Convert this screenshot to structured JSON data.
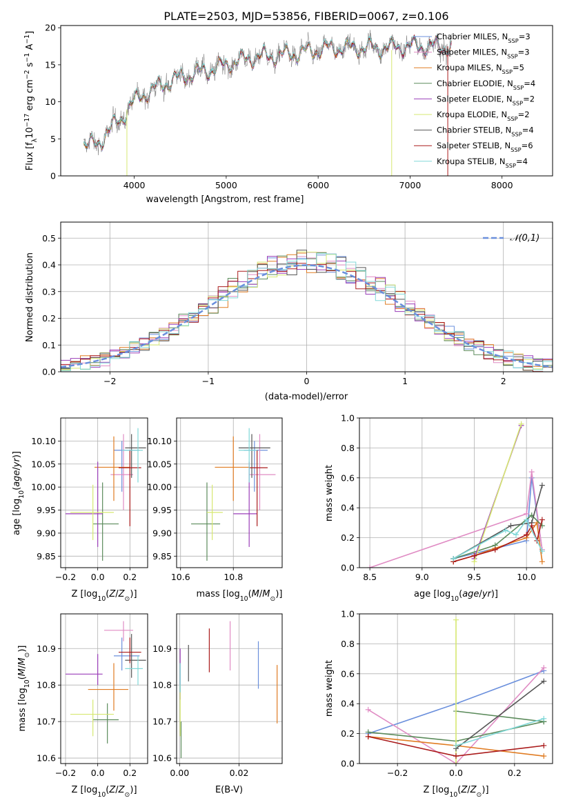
{
  "title": "PLATE=2503, MJD=53856, FIBERID=0067, z=0.106",
  "colors": {
    "chabrier_miles": "#6a8fdc",
    "salpeter_miles": "#e08cc4",
    "kroupa_miles": "#e07b21",
    "chabrier_elodie": "#5a8a5a",
    "salpeter_elodie": "#9a3db8",
    "kroupa_elodie": "#d6e870",
    "chabrier_stelib": "#555555",
    "salpeter_stelib": "#aa1a1a",
    "kroupa_stelib": "#80d8d8",
    "normal_curve": "#6a8fdc"
  },
  "chart_data": [
    {
      "id": "spectrum",
      "type": "line",
      "xlabel": "wavelength [Angstrom, rest frame]",
      "ylabel": "Flux [f_λ 10^-17 erg cm^-2 s^-1 A^-1]",
      "xlim": [
        3200,
        8550
      ],
      "ylim": [
        0,
        20.3
      ],
      "xticks": [
        4000,
        5000,
        6000,
        7000,
        8000
      ],
      "yticks": [
        0,
        5,
        10,
        15,
        20
      ],
      "legend_position": "top-right",
      "legend": [
        {
          "name": "Chabrier MILES",
          "nssp": "3",
          "color": "#6a8fdc"
        },
        {
          "name": "Salpeter MILES",
          "nssp": "3",
          "color": "#e08cc4"
        },
        {
          "name": "Kroupa MILES",
          "nssp": "5",
          "color": "#e07b21"
        },
        {
          "name": "Chabrier ELODIE",
          "nssp": "4",
          "color": "#5a8a5a"
        },
        {
          "name": "Salpeter ELODIE",
          "nssp": "2",
          "color": "#9a3db8"
        },
        {
          "name": "Kroupa ELODIE",
          "nssp": "2",
          "color": "#d6e870"
        },
        {
          "name": "Chabrier STELIB",
          "nssp": "4",
          "color": "#555555"
        },
        {
          "name": "Salpeter STELIB",
          "nssp": "6",
          "color": "#aa1a1a"
        },
        {
          "name": "Kroupa STELIB",
          "nssp": "4",
          "color": "#80d8d8"
        }
      ],
      "continuum": {
        "x": [
          3450,
          3600,
          3700,
          3850,
          3950,
          4100,
          4300,
          4500,
          4700,
          4900,
          5100,
          5300,
          5600,
          5900,
          6100,
          6400,
          6700,
          7000,
          7300,
          7450
        ],
        "y": [
          4.5,
          4.0,
          6.0,
          7.5,
          9.5,
          11.0,
          12.3,
          13.3,
          14.0,
          14.6,
          15.4,
          16.0,
          16.3,
          16.8,
          17.2,
          17.3,
          17.3,
          17.5,
          17.5,
          17.4
        ]
      },
      "model_end": {
        "Kroupa ELODIE": 6800,
        "Salpeter STELIB": 7400
      }
    },
    {
      "id": "residuals",
      "type": "line",
      "xlabel": "(data-model)/error",
      "ylabel": "Normed distribution",
      "xlim": [
        -2.5,
        2.5
      ],
      "ylim": [
        0,
        0.56
      ],
      "xticks": [
        -2,
        -1,
        0,
        1,
        2
      ],
      "yticks": [
        0,
        0.1,
        0.2,
        0.3,
        0.4,
        0.5
      ],
      "legend": "𝒩(0,1)",
      "legend_position": "top-right",
      "bin_width": 0.1
    },
    {
      "id": "age_vs_Z",
      "type": "scatter",
      "xlabel": "Z [log10(Z/Z☉)]",
      "ylabel": "age  [log10(age/yr)]",
      "xlim": [
        -0.23,
        0.31
      ],
      "ylim": [
        9.825,
        10.15
      ],
      "xticks": [
        -0.2,
        0,
        0.2
      ],
      "yticks": [
        9.85,
        9.9,
        9.95,
        10.0,
        10.05,
        10.1
      ],
      "points": [
        {
          "c": "chabrier_miles",
          "x": 0.15,
          "xl": 0.1,
          "xh": 0.26,
          "y": 10.08,
          "yl": 9.99,
          "yh": 10.1
        },
        {
          "c": "salpeter_miles",
          "x": 0.16,
          "xl": 0.08,
          "xh": 0.22,
          "y": 10.027,
          "yl": 9.95,
          "yh": 10.115
        },
        {
          "c": "kroupa_miles",
          "x": 0.1,
          "xl": -0.02,
          "xh": 0.2,
          "y": 10.043,
          "yl": 9.97,
          "yh": 10.11
        },
        {
          "c": "chabrier_elodie",
          "x": 0.03,
          "xl": -0.03,
          "xh": 0.13,
          "y": 9.92,
          "yl": 9.84,
          "yh": 10.01
        },
        {
          "c": "salpeter_elodie",
          "x": 0.0,
          "xl": -0.2,
          "xh": 0.03,
          "y": 9.942,
          "yl": 9.87,
          "yh": 10.055
        },
        {
          "c": "kroupa_elodie",
          "x": -0.03,
          "xl": -0.17,
          "xh": 0.1,
          "y": 9.945,
          "yl": 9.885,
          "yh": 10.005
        },
        {
          "c": "chabrier_stelib",
          "x": 0.21,
          "xl": 0.17,
          "xh": 0.3,
          "y": 10.085,
          "yl": 10.02,
          "yh": 10.115
        },
        {
          "c": "salpeter_stelib",
          "x": 0.2,
          "xl": 0.13,
          "xh": 0.27,
          "y": 10.042,
          "yl": 9.915,
          "yh": 10.08
        },
        {
          "c": "kroupa_stelib",
          "x": 0.25,
          "xl": 0.15,
          "xh": 0.28,
          "y": 10.08,
          "yl": 10.01,
          "yh": 10.128
        }
      ]
    },
    {
      "id": "age_vs_mass",
      "type": "scatter",
      "xlabel": "mass [log10(M/M☉)]",
      "ylabel": "",
      "xlim": [
        10.585,
        10.985
      ],
      "ylim": [
        9.825,
        10.15
      ],
      "xticks": [
        10.6,
        10.8
      ],
      "yticks": [
        9.85,
        9.9,
        9.95,
        10.0,
        10.05,
        10.1
      ],
      "points": [
        {
          "c": "chabrier_miles",
          "x": 10.88,
          "xl": 10.84,
          "xh": 10.93,
          "y": 10.08,
          "yl": 9.99,
          "yh": 10.1
        },
        {
          "c": "salpeter_miles",
          "x": 10.9,
          "xl": 10.86,
          "xh": 10.96,
          "y": 10.027,
          "yl": 9.95,
          "yh": 10.115
        },
        {
          "c": "kroupa_miles",
          "x": 10.8,
          "xl": 10.73,
          "xh": 10.86,
          "y": 10.043,
          "yl": 9.97,
          "yh": 10.11
        },
        {
          "c": "chabrier_elodie",
          "x": 10.7,
          "xl": 10.64,
          "xh": 10.75,
          "y": 9.92,
          "yl": 9.84,
          "yh": 10.01
        },
        {
          "c": "salpeter_elodie",
          "x": 10.86,
          "xl": 10.8,
          "xh": 10.89,
          "y": 9.942,
          "yl": 9.87,
          "yh": 10.055
        },
        {
          "c": "kroupa_elodie",
          "x": 10.72,
          "xl": 10.7,
          "xh": 10.76,
          "y": 9.945,
          "yl": 9.885,
          "yh": 10.005
        },
        {
          "c": "chabrier_stelib",
          "x": 10.87,
          "xl": 10.82,
          "xh": 10.94,
          "y": 10.085,
          "yl": 10.02,
          "yh": 10.115
        },
        {
          "c": "salpeter_stelib",
          "x": 10.89,
          "xl": 10.86,
          "xh": 10.93,
          "y": 10.042,
          "yl": 9.915,
          "yh": 10.08
        },
        {
          "c": "kroupa_stelib",
          "x": 10.86,
          "xl": 10.82,
          "xh": 10.89,
          "y": 10.08,
          "yl": 10.01,
          "yh": 10.128
        }
      ]
    },
    {
      "id": "weight_vs_age",
      "type": "line",
      "xlabel": "age  [log10(age/yr)]",
      "ylabel": "mass weight",
      "xlim": [
        8.4,
        10.25
      ],
      "ylim": [
        0,
        1
      ],
      "xticks": [
        8.5,
        9.0,
        9.5,
        10.0
      ],
      "yticks": [
        0,
        0.2,
        0.4,
        0.6,
        0.8,
        1.0
      ],
      "series": [
        {
          "c": "chabrier_miles",
          "x": [
            9.3,
            10.0,
            10.05,
            10.15
          ],
          "y": [
            0.06,
            0.18,
            0.6,
            0.12
          ]
        },
        {
          "c": "salpeter_miles",
          "x": [
            8.5,
            10.0,
            10.05,
            10.15
          ],
          "y": [
            0.0,
            0.36,
            0.64,
            0.12
          ]
        },
        {
          "c": "kroupa_miles",
          "x": [
            9.3,
            9.5,
            9.7,
            10.0,
            10.1,
            10.15
          ],
          "y": [
            0.04,
            0.08,
            0.13,
            0.2,
            0.3,
            0.04
          ]
        },
        {
          "c": "chabrier_elodie",
          "x": [
            9.3,
            9.7,
            10.05,
            10.15
          ],
          "y": [
            0.06,
            0.15,
            0.35,
            0.28
          ]
        },
        {
          "c": "salpeter_elodie",
          "x": [
            9.5,
            9.95
          ],
          "y": [
            0.06,
            0.95
          ]
        },
        {
          "c": "kroupa_elodie",
          "x": [
            9.5,
            9.95
          ],
          "y": [
            0.04,
            0.96
          ]
        },
        {
          "c": "chabrier_stelib",
          "x": [
            9.3,
            9.85,
            10.05,
            10.15
          ],
          "y": [
            0.06,
            0.28,
            0.3,
            0.55
          ]
        },
        {
          "c": "salpeter_stelib",
          "x": [
            9.3,
            9.5,
            9.7,
            10.0,
            10.05,
            10.1,
            10.15
          ],
          "y": [
            0.04,
            0.08,
            0.12,
            0.22,
            0.28,
            0.18,
            0.32
          ]
        },
        {
          "c": "kroupa_stelib",
          "x": [
            9.3,
            9.8,
            9.9,
            10.0,
            10.15
          ],
          "y": [
            0.06,
            0.25,
            0.22,
            0.32,
            0.11
          ]
        }
      ]
    },
    {
      "id": "mass_vs_Z",
      "type": "scatter",
      "xlabel": "Z [log10(Z/Z☉)]",
      "ylabel": "mass [log10(M/M☉)]",
      "xlim": [
        -0.23,
        0.31
      ],
      "ylim": [
        10.585,
        10.995
      ],
      "xticks": [
        -0.2,
        0,
        0.2
      ],
      "yticks": [
        10.6,
        10.7,
        10.8,
        10.9
      ],
      "points": [
        {
          "c": "chabrier_miles",
          "x": 0.15,
          "xl": 0.1,
          "xh": 0.26,
          "y": 10.88,
          "yl": 10.84,
          "yh": 10.93
        },
        {
          "c": "salpeter_miles",
          "x": 0.16,
          "xl": 0.04,
          "xh": 0.22,
          "y": 10.95,
          "yl": 10.92,
          "yh": 10.975
        },
        {
          "c": "kroupa_miles",
          "x": 0.1,
          "xl": -0.06,
          "xh": 0.19,
          "y": 10.788,
          "yl": 10.73,
          "yh": 10.86
        },
        {
          "c": "chabrier_elodie",
          "x": 0.06,
          "xl": -0.03,
          "xh": 0.13,
          "y": 10.705,
          "yl": 10.64,
          "yh": 10.75
        },
        {
          "c": "salpeter_elodie",
          "x": 0.0,
          "xl": -0.2,
          "xh": 0.03,
          "y": 10.83,
          "yl": 10.8,
          "yh": 10.885
        },
        {
          "c": "kroupa_elodie",
          "x": -0.03,
          "xl": -0.17,
          "xh": 0.1,
          "y": 10.72,
          "yl": 10.66,
          "yh": 10.76
        },
        {
          "c": "chabrier_stelib",
          "x": 0.21,
          "xl": 0.17,
          "xh": 0.3,
          "y": 10.868,
          "yl": 10.82,
          "yh": 10.94
        },
        {
          "c": "salpeter_stelib",
          "x": 0.2,
          "xl": 0.13,
          "xh": 0.27,
          "y": 10.89,
          "yl": 10.86,
          "yh": 10.93
        },
        {
          "c": "kroupa_stelib",
          "x": 0.25,
          "xl": 0.17,
          "xh": 0.28,
          "y": 10.845,
          "yl": 10.8,
          "yh": 10.88
        }
      ]
    },
    {
      "id": "mass_vs_ebv",
      "type": "scatter",
      "xlabel": "E(B-V)",
      "ylabel": "",
      "xlim": [
        -0.001,
        0.0345
      ],
      "ylim": [
        10.585,
        10.995
      ],
      "xticks": [
        0.0,
        0.02
      ],
      "yticks": [
        10.6,
        10.7,
        10.8,
        10.9
      ],
      "points": [
        {
          "c": "chabrier_miles",
          "x": 0.0265,
          "yl": 10.79,
          "yh": 10.92
        },
        {
          "c": "salpeter_miles",
          "x": 0.017,
          "yl": 10.84,
          "yh": 10.975
        },
        {
          "c": "kroupa_miles",
          "x": 0.0328,
          "yl": 10.695,
          "yh": 10.855
        },
        {
          "c": "chabrier_elodie",
          "x": 0.0005,
          "yl": 10.6,
          "yh": 10.7
        },
        {
          "c": "salpeter_elodie",
          "x": 0.0002,
          "yl": 10.76,
          "yh": 10.9
        },
        {
          "c": "kroupa_elodie",
          "x": 0.0002,
          "yl": 10.66,
          "yh": 10.8
        },
        {
          "c": "chabrier_stelib",
          "x": 0.003,
          "yl": 10.81,
          "yh": 10.91
        },
        {
          "c": "salpeter_stelib",
          "x": 0.01,
          "yl": 10.835,
          "yh": 10.955
        },
        {
          "c": "kroupa_stelib",
          "x": 0.0002,
          "yl": 10.78,
          "yh": 10.86
        }
      ]
    },
    {
      "id": "weight_vs_Z",
      "type": "line",
      "xlabel": "Z [log10(Z/Z☉)]",
      "ylabel": "mass weight",
      "xlim": [
        -0.33,
        0.33
      ],
      "ylim": [
        0,
        1
      ],
      "xticks": [
        -0.2,
        0.0,
        0.2
      ],
      "yticks": [
        0,
        0.2,
        0.4,
        0.6,
        0.8,
        1.0
      ],
      "series": [
        {
          "c": "chabrier_miles",
          "x": [
            -0.3,
            0.0,
            0.3
          ],
          "y": [
            0.2,
            0.4,
            0.62
          ]
        },
        {
          "c": "salpeter_miles",
          "x": [
            -0.3,
            0.0,
            0.3
          ],
          "y": [
            0.36,
            0.0,
            0.64
          ]
        },
        {
          "c": "kroupa_miles",
          "x": [
            -0.3,
            0.0,
            0.3
          ],
          "y": [
            0.18,
            0.12,
            0.05
          ]
        },
        {
          "c": "chabrier_elodie",
          "x": [
            -0.3,
            0.0,
            0.3
          ],
          "y": [
            0.21,
            0.15,
            0.28
          ]
        },
        {
          "c": "chabrier_elodie",
          "x": [
            0.0,
            0.3
          ],
          "y": [
            0.35,
            0.28
          ]
        },
        {
          "c": "kroupa_elodie",
          "x": [
            0.0,
            0.0
          ],
          "y": [
            0.0,
            0.96
          ]
        },
        {
          "c": "chabrier_stelib",
          "x": [
            0.0,
            0.3
          ],
          "y": [
            0.1,
            0.55
          ]
        },
        {
          "c": "salpeter_stelib",
          "x": [
            -0.3,
            0.0,
            0.3
          ],
          "y": [
            0.18,
            0.05,
            0.12
          ]
        },
        {
          "c": "kroupa_stelib",
          "x": [
            0.0,
            0.3
          ],
          "y": [
            0.12,
            0.3
          ]
        }
      ]
    }
  ]
}
